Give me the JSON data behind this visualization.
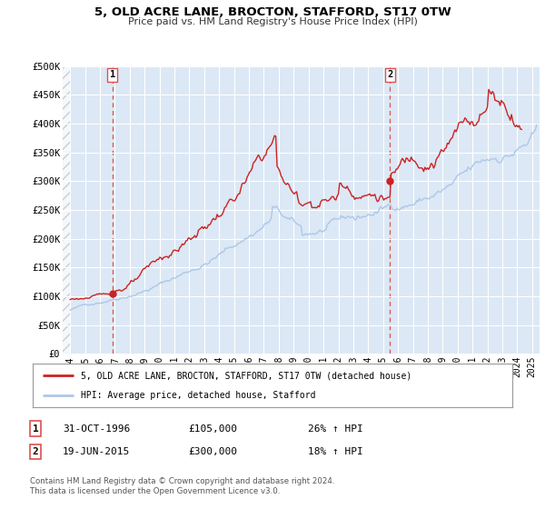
{
  "title": "5, OLD ACRE LANE, BROCTON, STAFFORD, ST17 0TW",
  "subtitle": "Price paid vs. HM Land Registry's House Price Index (HPI)",
  "ylim": [
    0,
    500000
  ],
  "xlim_start": 1993.5,
  "xlim_end": 2025.5,
  "data_start": 1994.0,
  "yticks": [
    0,
    50000,
    100000,
    150000,
    200000,
    250000,
    300000,
    350000,
    400000,
    450000,
    500000
  ],
  "ytick_labels": [
    "£0",
    "£50K",
    "£100K",
    "£150K",
    "£200K",
    "£250K",
    "£300K",
    "£350K",
    "£400K",
    "£450K",
    "£500K"
  ],
  "hpi_color": "#adc8e8",
  "price_color": "#cc2222",
  "marker_color": "#cc2222",
  "vline_color": "#e05050",
  "background_color": "#ffffff",
  "plot_bg_color": "#dce8f5",
  "grid_color": "#ffffff",
  "hatch_color": "#cccccc",
  "sale1_year": 1996.833,
  "sale1_price": 105000,
  "sale2_year": 2015.46,
  "sale2_price": 300000,
  "legend_label_price": "5, OLD ACRE LANE, BROCTON, STAFFORD, ST17 0TW (detached house)",
  "legend_label_hpi": "HPI: Average price, detached house, Stafford",
  "annotation1_label": "1",
  "annotation1_date": "31-OCT-1996",
  "annotation1_price": "£105,000",
  "annotation1_hpi": "26% ↑ HPI",
  "annotation2_label": "2",
  "annotation2_date": "19-JUN-2015",
  "annotation2_price": "£300,000",
  "annotation2_hpi": "18% ↑ HPI",
  "footer": "Contains HM Land Registry data © Crown copyright and database right 2024.\nThis data is licensed under the Open Government Licence v3.0.",
  "xticks": [
    1994,
    1995,
    1996,
    1997,
    1998,
    1999,
    2000,
    2001,
    2002,
    2003,
    2004,
    2005,
    2006,
    2007,
    2008,
    2009,
    2010,
    2011,
    2012,
    2013,
    2014,
    2015,
    2016,
    2017,
    2018,
    2019,
    2020,
    2021,
    2022,
    2023,
    2024,
    2025
  ]
}
